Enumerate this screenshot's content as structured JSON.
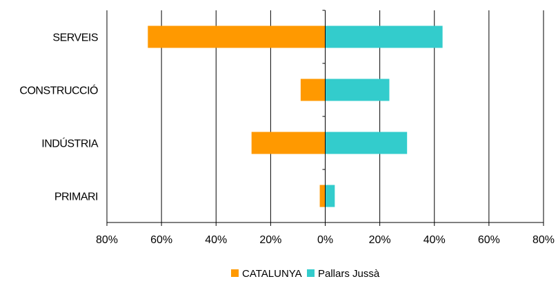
{
  "chart_data": {
    "type": "bar",
    "orientation": "horizontal",
    "categories": [
      "SERVEIS",
      "CONSTRUCCIÓ",
      "INDÚSTRIA",
      "PRIMARI"
    ],
    "series": [
      {
        "name": "CATALUNYA",
        "values": [
          -65,
          -9,
          -27,
          -2
        ],
        "color": "#FF9900"
      },
      {
        "name": "Pallars Jussà",
        "values": [
          43,
          23.5,
          30,
          3.5
        ],
        "color": "#33CCCC"
      }
    ],
    "x_ticks": [
      "80%",
      "60%",
      "40%",
      "20%",
      "0%",
      "20%",
      "40%",
      "60%",
      "80%"
    ],
    "xlim": [
      -80,
      80
    ],
    "grid": true,
    "legend": "bottom"
  }
}
